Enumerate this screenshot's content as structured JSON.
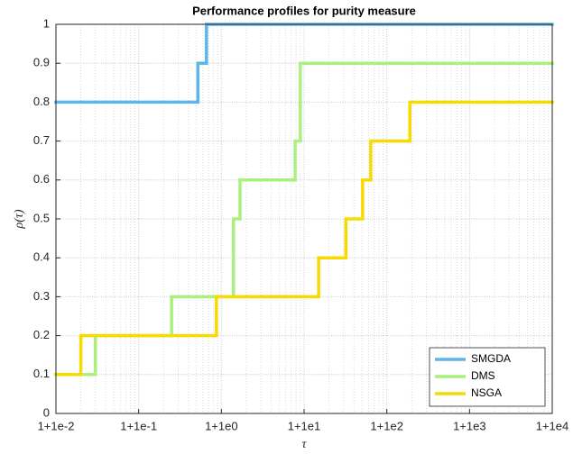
{
  "chart_data": {
    "type": "step",
    "title": "Performance profiles for purity measure",
    "xlabel": "τ",
    "ylabel": "ρ(τ)",
    "xscale": "log",
    "grid": true,
    "minor_grid": true,
    "legend": "southeast",
    "xlim": [
      1.01,
      10001
    ],
    "xticks": [
      {
        "value": 1.01,
        "label": "1+1e-2"
      },
      {
        "value": 1.1,
        "label": "1+1e-1"
      },
      {
        "value": 2,
        "label": "1+1e0"
      },
      {
        "value": 11,
        "label": "1+1e1"
      },
      {
        "value": 101,
        "label": "1+1e2"
      },
      {
        "value": 1001,
        "label": "1+1e3"
      },
      {
        "value": 10001,
        "label": "1+1e4"
      }
    ],
    "ylim": [
      0,
      1
    ],
    "yticks": [
      0,
      0.1,
      0.2,
      0.3,
      0.4,
      0.5,
      0.6,
      0.7,
      0.8,
      0.9,
      1
    ],
    "series": [
      {
        "name": "SMGDA",
        "color": "#5db5ec",
        "x": [
          1.01,
          1.52,
          1.66
        ],
        "values": [
          0.8,
          0.9,
          1
        ]
      },
      {
        "name": "DMS",
        "color": "#aaf07c",
        "x": [
          1.01,
          1.03,
          1.25,
          2.4,
          2.68,
          8.8,
          10
        ],
        "values": [
          0.1,
          0.2,
          0.3,
          0.5,
          0.6,
          0.7,
          0.9
        ]
      },
      {
        "name": "NSGA",
        "color": "#f7da00",
        "x": [
          1.01,
          1.02,
          1.87,
          16,
          33,
          52,
          65,
          191
        ],
        "values": [
          0.1,
          0.2,
          0.3,
          0.4,
          0.5,
          0.6,
          0.7,
          0.8
        ]
      }
    ]
  }
}
